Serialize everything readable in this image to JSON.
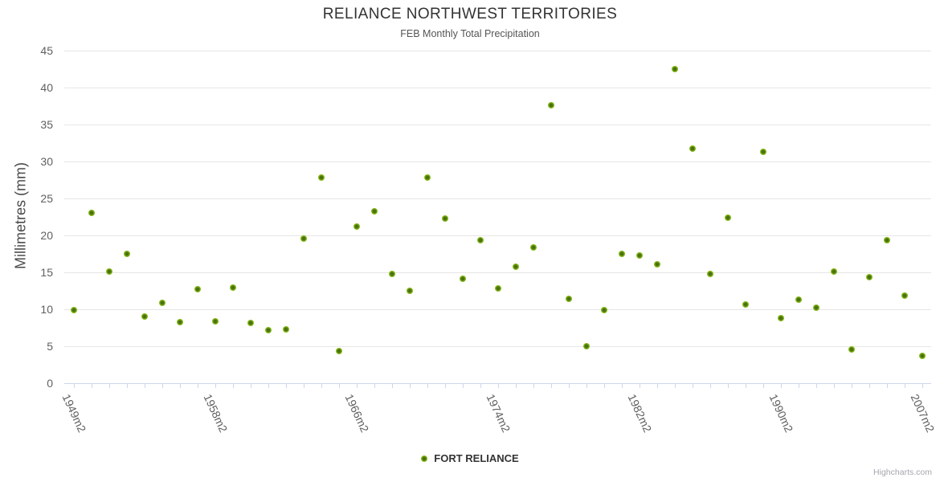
{
  "chart_data": {
    "type": "scatter",
    "title": "RELIANCE NORTHWEST TERRITORIES",
    "subtitle": "FEB Monthly Total Precipitation",
    "xlabel": "",
    "ylabel": "Millimetres (mm)",
    "ylim": [
      0,
      45
    ],
    "yticks": [
      0,
      5,
      10,
      15,
      20,
      25,
      30,
      35,
      40,
      45
    ],
    "grid": "horizontal",
    "legend_position": "bottom-center",
    "num_categories": 49,
    "x_tick_labels": [
      {
        "index": 0,
        "label": "1949m2"
      },
      {
        "index": 8,
        "label": "1958m2"
      },
      {
        "index": 16,
        "label": "1966m2"
      },
      {
        "index": 24,
        "label": "1974m2"
      },
      {
        "index": 32,
        "label": "1982m2"
      },
      {
        "index": 40,
        "label": "1990m2"
      },
      {
        "index": 48,
        "label": "2007m2"
      }
    ],
    "series": [
      {
        "name": "FORT RELIANCE",
        "values": [
          9.9,
          23.0,
          15.1,
          17.5,
          9.0,
          10.9,
          8.3,
          12.7,
          8.4,
          12.9,
          8.1,
          7.2,
          7.3,
          19.6,
          27.8,
          4.4,
          21.2,
          23.3,
          14.8,
          12.5,
          27.8,
          22.3,
          14.1,
          19.4,
          12.8,
          15.8,
          18.4,
          37.6,
          11.4,
          5.0,
          9.9,
          17.5,
          17.3,
          16.1,
          42.5,
          31.7,
          14.8,
          22.4,
          10.6,
          31.3,
          8.8,
          11.3,
          10.2,
          15.1,
          4.6,
          14.3,
          19.4,
          11.9,
          3.7
        ]
      }
    ]
  },
  "credits": {
    "label": "Highcharts.com"
  },
  "colors": {
    "title": "#333333",
    "subtitle": "#555555",
    "axis_label": "#606060",
    "axis_title": "#4a4a4a",
    "axis_line": "#ccd6eb",
    "gridline": "#e6e6e6",
    "legend_text": "#333333",
    "credits_text": "#a5a5af",
    "marker_outer": "#8abb19",
    "marker_inner": "#47710d"
  }
}
